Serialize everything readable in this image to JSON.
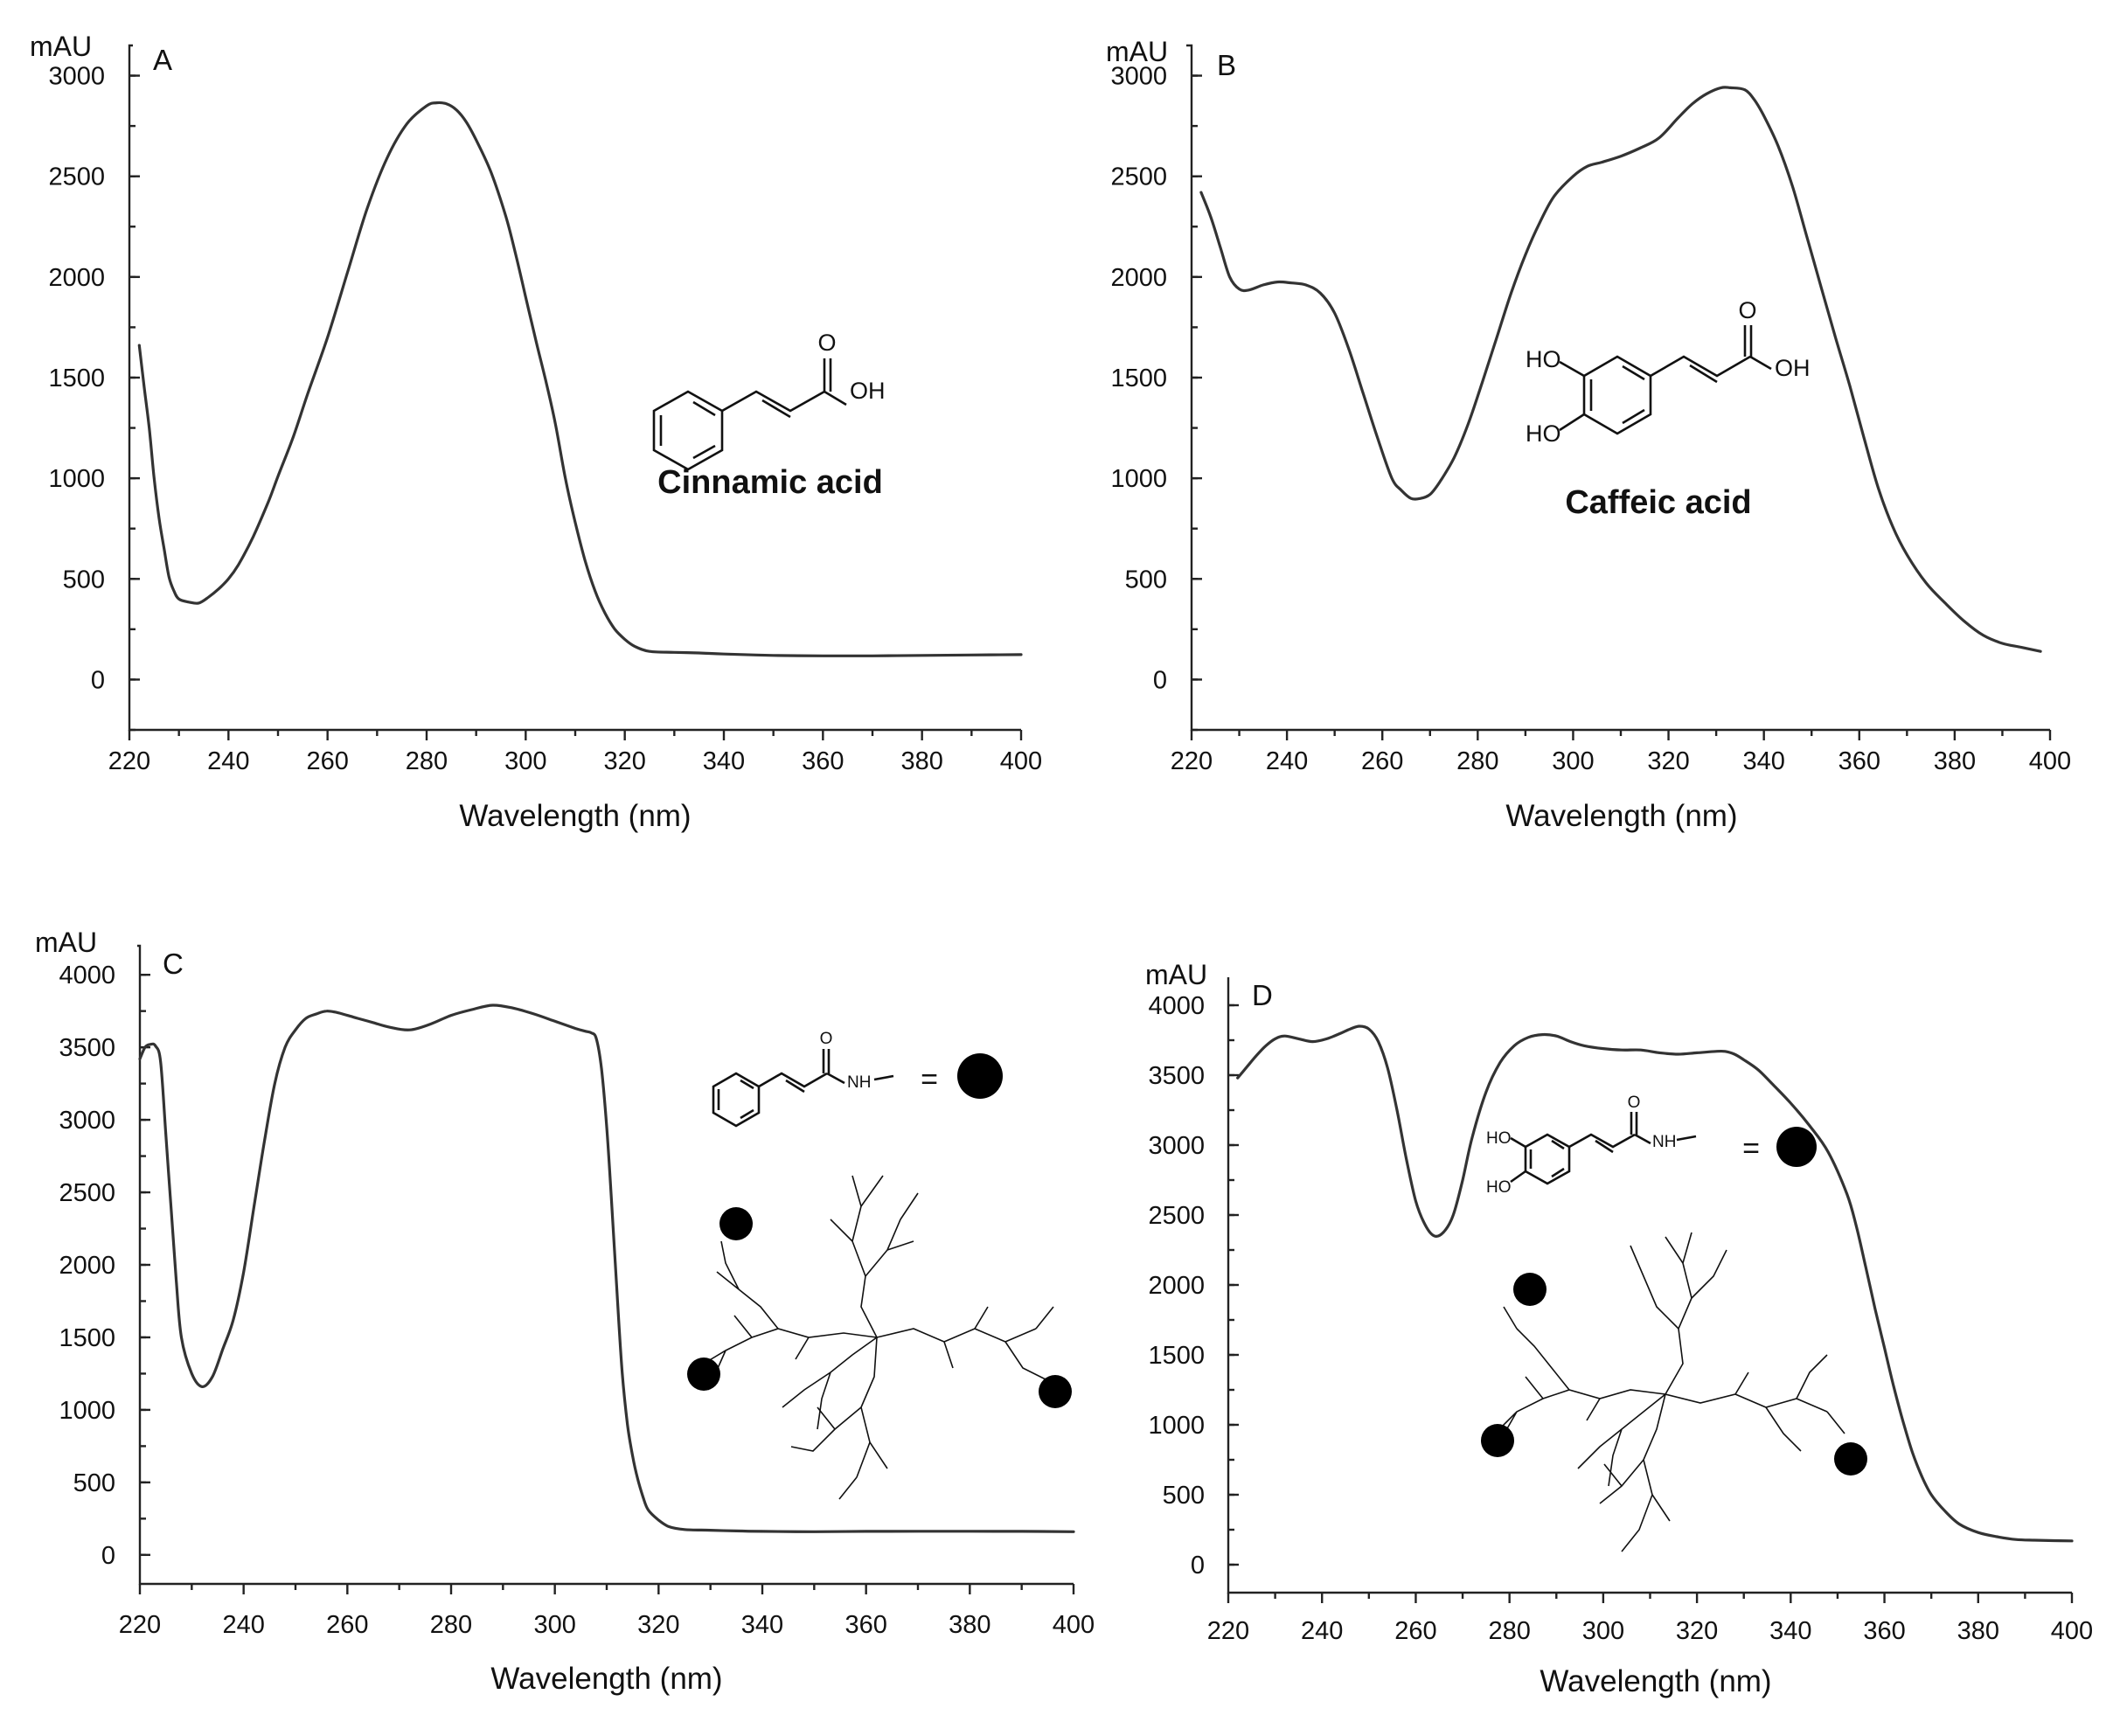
{
  "chart_data": [
    {
      "type": "line",
      "panel": "A",
      "compound": "Cinnamic acid",
      "ylabel_unit": "mAU",
      "xlabel": "Wavelength (nm)",
      "xlim": [
        220,
        400
      ],
      "ylim": [
        -250,
        3150
      ],
      "xticks": [
        220,
        240,
        260,
        280,
        300,
        320,
        340,
        360,
        380,
        400
      ],
      "yticks": [
        0,
        500,
        1000,
        1500,
        2000,
        2500,
        3000
      ],
      "x": [
        222,
        223,
        224,
        225,
        226,
        227,
        228,
        229,
        230,
        232,
        234,
        236,
        238,
        240,
        242,
        245,
        248,
        250,
        253,
        256,
        260,
        264,
        268,
        272,
        276,
        280,
        282,
        284,
        286,
        288,
        290,
        293,
        296,
        298,
        300,
        302,
        304,
        306,
        308,
        310,
        312,
        314,
        316,
        318,
        320,
        322,
        325,
        330,
        335,
        340,
        350,
        360,
        370,
        380,
        390,
        400
      ],
      "y": [
        1660,
        1450,
        1250,
        1000,
        800,
        650,
        510,
        440,
        400,
        385,
        380,
        410,
        450,
        500,
        570,
        710,
        880,
        1010,
        1200,
        1420,
        1700,
        2020,
        2340,
        2590,
        2760,
        2850,
        2865,
        2860,
        2830,
        2770,
        2680,
        2520,
        2300,
        2110,
        1900,
        1690,
        1490,
        1270,
        1000,
        780,
        590,
        440,
        330,
        250,
        200,
        165,
        140,
        135,
        132,
        127,
        120,
        118,
        118,
        120,
        122,
        124
      ]
    },
    {
      "type": "line",
      "panel": "B",
      "compound": "Caffeic acid",
      "ylabel_unit": "mAU",
      "xlabel": "Wavelength (nm)",
      "xlim": [
        220,
        400
      ],
      "ylim": [
        -250,
        3150
      ],
      "xticks": [
        220,
        240,
        260,
        280,
        300,
        320,
        340,
        360,
        380,
        400
      ],
      "yticks": [
        0,
        500,
        1000,
        1500,
        2000,
        2500,
        3000
      ],
      "x": [
        222,
        224,
        226,
        228,
        230,
        232,
        235,
        238,
        241,
        244,
        247,
        250,
        253,
        256,
        259,
        262,
        264,
        266,
        268,
        270,
        272,
        275,
        278,
        281,
        284,
        287,
        290,
        293,
        296,
        300,
        303,
        306,
        310,
        314,
        318,
        322,
        325,
        328,
        331,
        333,
        336,
        338,
        340,
        343,
        346,
        349,
        352,
        355,
        358,
        361,
        364,
        367,
        370,
        374,
        378,
        382,
        386,
        390,
        394,
        398
      ],
      "y": [
        2420,
        2300,
        2150,
        2000,
        1940,
        1935,
        1960,
        1975,
        1970,
        1960,
        1920,
        1820,
        1640,
        1420,
        1200,
        1000,
        940,
        900,
        900,
        920,
        980,
        1100,
        1270,
        1480,
        1700,
        1920,
        2110,
        2270,
        2400,
        2500,
        2550,
        2570,
        2600,
        2640,
        2690,
        2790,
        2860,
        2910,
        2940,
        2940,
        2930,
        2880,
        2800,
        2650,
        2450,
        2200,
        1950,
        1700,
        1460,
        1200,
        950,
        760,
        620,
        480,
        380,
        290,
        220,
        180,
        160,
        140
      ]
    },
    {
      "type": "line",
      "panel": "C",
      "compound": "",
      "ylabel_unit": "mAU",
      "xlabel": "Wavelength (nm)",
      "xlim": [
        220,
        400
      ],
      "ylim": [
        -200,
        4200
      ],
      "xticks": [
        220,
        240,
        260,
        280,
        300,
        320,
        340,
        360,
        380,
        400
      ],
      "yticks": [
        0,
        500,
        1000,
        1500,
        2000,
        2500,
        3000,
        3500,
        4000
      ],
      "x": [
        220,
        221,
        222,
        223,
        224,
        225,
        226,
        227,
        228,
        230,
        232,
        234,
        236,
        238,
        240,
        242,
        244,
        246,
        248,
        250,
        252,
        254,
        256,
        258,
        260,
        262,
        265,
        268,
        272,
        276,
        280,
        284,
        288,
        292,
        296,
        300,
        304,
        306,
        307,
        308,
        309,
        310,
        311,
        312,
        313,
        314,
        315,
        316,
        317,
        318,
        320,
        322,
        325,
        330,
        335,
        340,
        350,
        360,
        370,
        380,
        390,
        400
      ],
      "y": [
        3420,
        3500,
        3520,
        3510,
        3400,
        2900,
        2400,
        1900,
        1500,
        1250,
        1160,
        1230,
        1420,
        1620,
        1950,
        2400,
        2850,
        3250,
        3500,
        3620,
        3700,
        3730,
        3750,
        3740,
        3720,
        3700,
        3670,
        3640,
        3620,
        3660,
        3720,
        3760,
        3790,
        3770,
        3730,
        3680,
        3630,
        3610,
        3600,
        3560,
        3350,
        2950,
        2400,
        1800,
        1250,
        900,
        680,
        520,
        400,
        310,
        240,
        195,
        175,
        170,
        165,
        162,
        160,
        162,
        163,
        163,
        162,
        160
      ]
    },
    {
      "type": "line",
      "panel": "D",
      "compound": "",
      "ylabel_unit": "mAU",
      "xlabel": "Wavelength (nm)",
      "xlim": [
        220,
        400
      ],
      "ylim": [
        -200,
        4200
      ],
      "xticks": [
        220,
        240,
        260,
        280,
        300,
        320,
        340,
        360,
        380,
        400
      ],
      "yticks": [
        0,
        500,
        1000,
        1500,
        2000,
        2500,
        3000,
        3500,
        4000
      ],
      "x": [
        222,
        224,
        226,
        228,
        230,
        232,
        235,
        238,
        241,
        244,
        246,
        248,
        250,
        252,
        254,
        256,
        258,
        260,
        262,
        264,
        266,
        268,
        270,
        272,
        275,
        278,
        281,
        284,
        287,
        290,
        293,
        296,
        300,
        304,
        308,
        312,
        316,
        320,
        324,
        326,
        328,
        330,
        333,
        336,
        340,
        344,
        348,
        352,
        354,
        356,
        358,
        360,
        362,
        364,
        366,
        368,
        370,
        373,
        376,
        380,
        384,
        388,
        392,
        396,
        400
      ],
      "y": [
        3480,
        3560,
        3640,
        3710,
        3760,
        3780,
        3760,
        3740,
        3760,
        3800,
        3830,
        3850,
        3830,
        3740,
        3550,
        3250,
        2900,
        2600,
        2430,
        2350,
        2380,
        2500,
        2750,
        3050,
        3380,
        3590,
        3710,
        3770,
        3790,
        3780,
        3740,
        3710,
        3690,
        3680,
        3680,
        3660,
        3650,
        3660,
        3670,
        3670,
        3650,
        3610,
        3540,
        3440,
        3300,
        3140,
        2950,
        2650,
        2420,
        2130,
        1830,
        1550,
        1270,
        1020,
        800,
        630,
        500,
        380,
        290,
        230,
        200,
        180,
        175,
        172,
        170
      ]
    }
  ],
  "labels": {
    "A": {
      "letter": "A",
      "unit": "mAU",
      "xlabel": "Wavelength (nm)",
      "compound": "Cinnamic acid",
      "atoms": {
        "o": "O",
        "oh": "OH"
      }
    },
    "B": {
      "letter": "B",
      "unit": "mAU",
      "xlabel": "Wavelength (nm)",
      "compound": "Caffeic acid",
      "atoms": {
        "o": "O",
        "oh": "OH",
        "ho1": "HO",
        "ho2": "HO"
      }
    },
    "C": {
      "letter": "C",
      "unit": "mAU",
      "xlabel": "Wavelength (nm)",
      "atoms": {
        "o": "O",
        "nh": "NH",
        "eq": "="
      }
    },
    "D": {
      "letter": "D",
      "unit": "mAU",
      "xlabel": "Wavelength (nm)",
      "atoms": {
        "o": "O",
        "nh": "NH",
        "ho1": "HO",
        "ho2": "HO",
        "eq": "="
      }
    }
  }
}
